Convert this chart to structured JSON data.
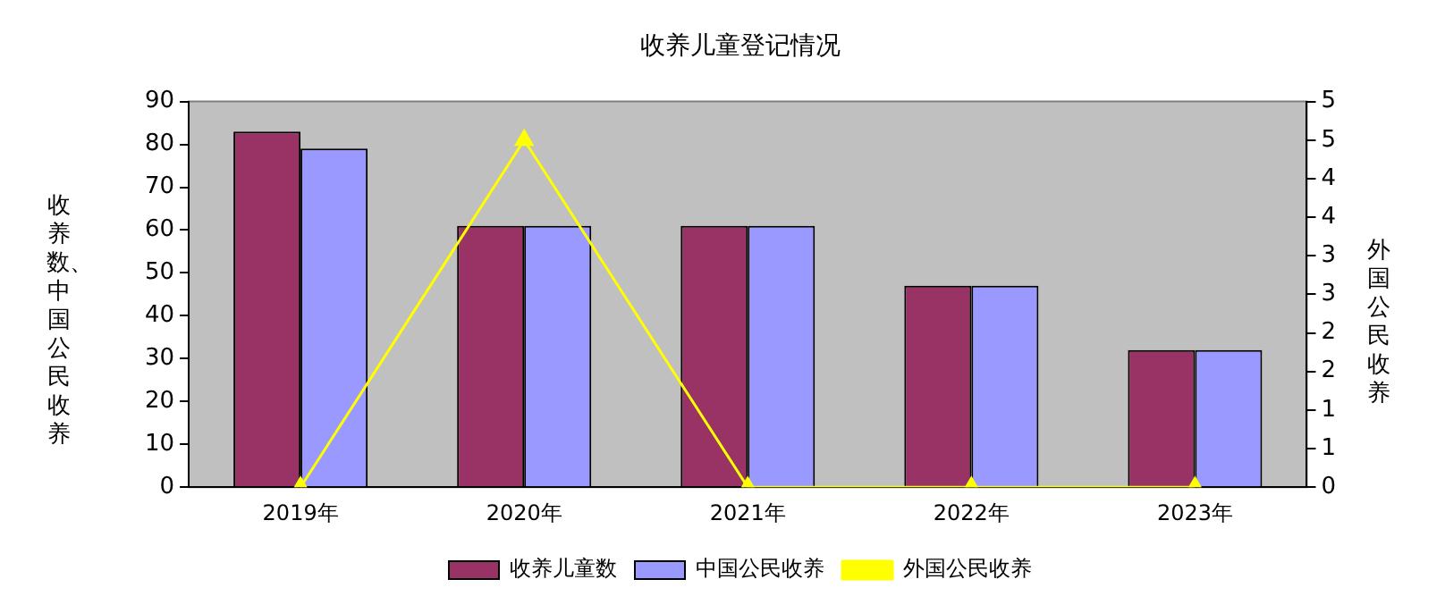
{
  "chart_data": {
    "type": "bar",
    "title": "收养儿童登记情况",
    "categories": [
      "2019年",
      "2020年",
      "2021年",
      "2022年",
      "2023年"
    ],
    "ylabel": "收养数、中国公民收养",
    "y2label": "外国公民收养",
    "series": [
      {
        "name": "收养儿童数",
        "color": "#993366",
        "values": [
          83,
          61,
          61,
          47,
          32
        ]
      },
      {
        "name": "中国公民收养",
        "color": "#9999ff",
        "values": [
          79,
          61,
          61,
          47,
          32
        ]
      },
      {
        "name": "外国公民收养",
        "type": "line",
        "axis": "y2",
        "color": "#ffff00",
        "values": [
          0,
          4.5,
          0,
          0,
          0
        ]
      }
    ],
    "ylim": [
      0,
      90
    ],
    "yticks": [
      0,
      10,
      20,
      30,
      40,
      50,
      60,
      70,
      80,
      90
    ],
    "y2lim": [
      0,
      5
    ],
    "y2ticks": [
      0,
      {
        "value": 0.5,
        "label": "1"
      },
      1,
      {
        "value": 1.5,
        "label": "2"
      },
      2,
      {
        "value": 2.5,
        "label": "3"
      },
      3,
      {
        "value": 3.5,
        "label": "4"
      },
      4,
      {
        "value": 4.5,
        "label": "5"
      },
      5
    ],
    "grid": false,
    "legend": "bottom",
    "marker": "triangle",
    "line_style": "solid"
  }
}
